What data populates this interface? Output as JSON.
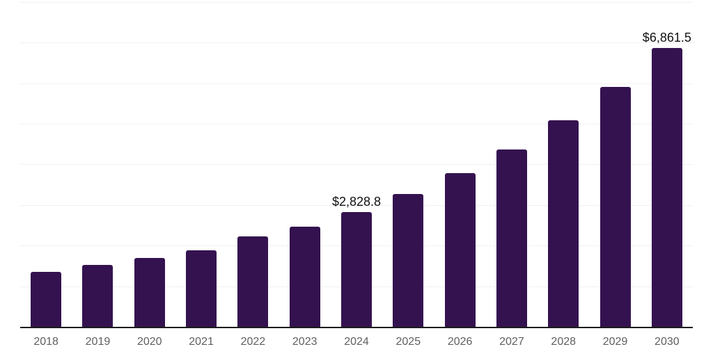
{
  "chart_data": {
    "type": "bar",
    "title": "",
    "xlabel": "",
    "ylabel": "",
    "categories": [
      "2018",
      "2019",
      "2020",
      "2021",
      "2022",
      "2023",
      "2024",
      "2025",
      "2026",
      "2027",
      "2028",
      "2029",
      "2030"
    ],
    "values": [
      1350,
      1525,
      1695,
      1885,
      2220,
      2465,
      2828.8,
      3270,
      3790,
      4370,
      5085,
      5910,
      6861.5
    ],
    "data_labels": {
      "2024": "$2,828.8",
      "2030": "$6,861.5"
    },
    "ylim": [
      0,
      8000
    ],
    "gridline_interval": 1000,
    "grid": "horizontal-only",
    "y_tick_labels": "none",
    "legend_position": "none",
    "colors": {
      "bar": "#341250",
      "axis_line": "#1b1b1b",
      "gridline": "#f1f1f2",
      "tick_label": "#5f5f5f",
      "data_label": "#111111",
      "background": "#ffffff"
    }
  }
}
